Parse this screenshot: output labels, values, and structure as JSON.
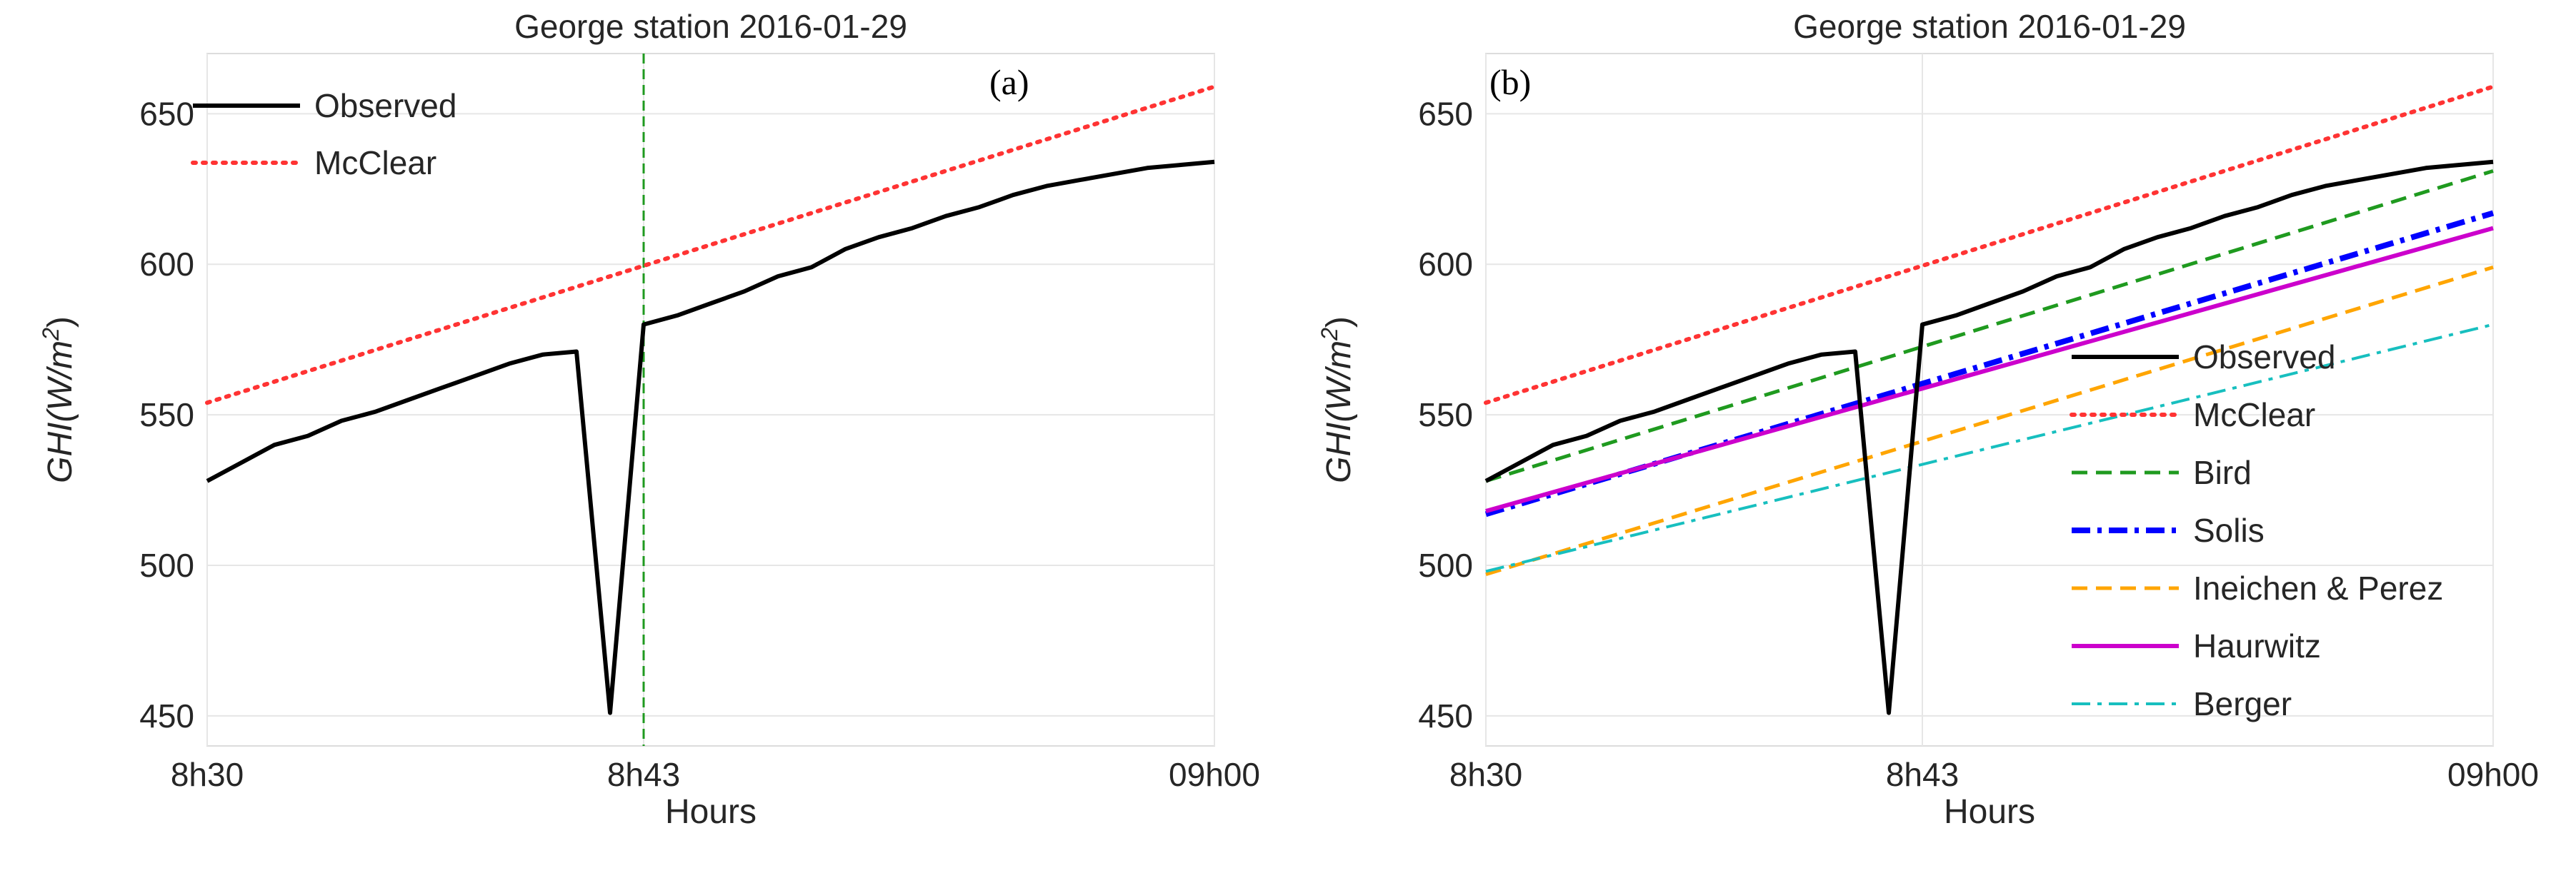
{
  "chart_data": [
    {
      "type": "line",
      "panel_label": "(a)",
      "title": "George station 2016-01-29",
      "xlabel": "Hours",
      "ylabel_main": "GHI",
      "ylabel_unit": "(W/m",
      "ylabel_sup": "2",
      "ylabel_close": ")",
      "xlim": [
        0,
        30
      ],
      "ylim": [
        440,
        670
      ],
      "xticks": [
        0,
        13,
        30
      ],
      "xtick_labels": [
        "8h30",
        "8h43",
        "09h00"
      ],
      "yticks": [
        450,
        500,
        550,
        600,
        650
      ],
      "event_marker_x": 13,
      "legend_position": "top-left",
      "series": [
        {
          "name": "Observed",
          "color": "#000000",
          "dash": "solid",
          "x": [
            0,
            1,
            2,
            3,
            4,
            5,
            6,
            7,
            8,
            9,
            10,
            11,
            12,
            13,
            14,
            15,
            16,
            17,
            18,
            19,
            20,
            21,
            22,
            23,
            24,
            25,
            26,
            27,
            28,
            29,
            30
          ],
          "y": [
            528,
            534,
            540,
            543,
            548,
            551,
            555,
            559,
            563,
            567,
            570,
            571,
            451,
            580,
            583,
            587,
            591,
            596,
            599,
            605,
            609,
            612,
            616,
            619,
            623,
            626,
            628,
            630,
            632,
            633,
            634
          ]
        },
        {
          "name": "McClear",
          "color": "#ff3333",
          "dash": "dotted",
          "x": [
            0,
            30
          ],
          "y": [
            554,
            659
          ]
        }
      ]
    },
    {
      "type": "line",
      "panel_label": "(b)",
      "title": "George station 2016-01-29",
      "xlabel": "Hours",
      "ylabel_main": "GHI",
      "ylabel_unit": "(W/m",
      "ylabel_sup": "2",
      "ylabel_close": ")",
      "xlim": [
        0,
        30
      ],
      "ylim": [
        440,
        670
      ],
      "xticks": [
        0,
        13,
        30
      ],
      "xtick_labels": [
        "8h30",
        "8h43",
        "09h00"
      ],
      "yticks": [
        450,
        500,
        550,
        600,
        650
      ],
      "legend_position": "center-right",
      "series": [
        {
          "name": "Observed",
          "color": "#000000",
          "dash": "solid",
          "x": [
            0,
            1,
            2,
            3,
            4,
            5,
            6,
            7,
            8,
            9,
            10,
            11,
            12,
            13,
            14,
            15,
            16,
            17,
            18,
            19,
            20,
            21,
            22,
            23,
            24,
            25,
            26,
            27,
            28,
            29,
            30
          ],
          "y": [
            528,
            534,
            540,
            543,
            548,
            551,
            555,
            559,
            563,
            567,
            570,
            571,
            451,
            580,
            583,
            587,
            591,
            596,
            599,
            605,
            609,
            612,
            616,
            619,
            623,
            626,
            628,
            630,
            632,
            633,
            634
          ]
        },
        {
          "name": "McClear",
          "color": "#ff3333",
          "dash": "dotted",
          "x": [
            0,
            30
          ],
          "y": [
            554,
            659
          ]
        },
        {
          "name": "Bird",
          "color": "#1f9a1f",
          "dash": "dashed",
          "x": [
            0,
            30
          ],
          "y": [
            528,
            631
          ]
        },
        {
          "name": "Solis",
          "color": "#0000ff",
          "dash": "dashdot-bold",
          "x": [
            0,
            30
          ],
          "y": [
            517,
            617
          ]
        },
        {
          "name": "Ineichen & Perez",
          "color": "#ffa500",
          "dash": "dashed",
          "x": [
            0,
            30
          ],
          "y": [
            497,
            599
          ]
        },
        {
          "name": "Haurwitz",
          "color": "#cc00cc",
          "dash": "solid",
          "x": [
            0,
            30
          ],
          "y": [
            518,
            612
          ]
        },
        {
          "name": "Berger",
          "color": "#17bfbf",
          "dash": "dashdot",
          "x": [
            0,
            30
          ],
          "y": [
            498,
            580
          ]
        }
      ]
    }
  ]
}
